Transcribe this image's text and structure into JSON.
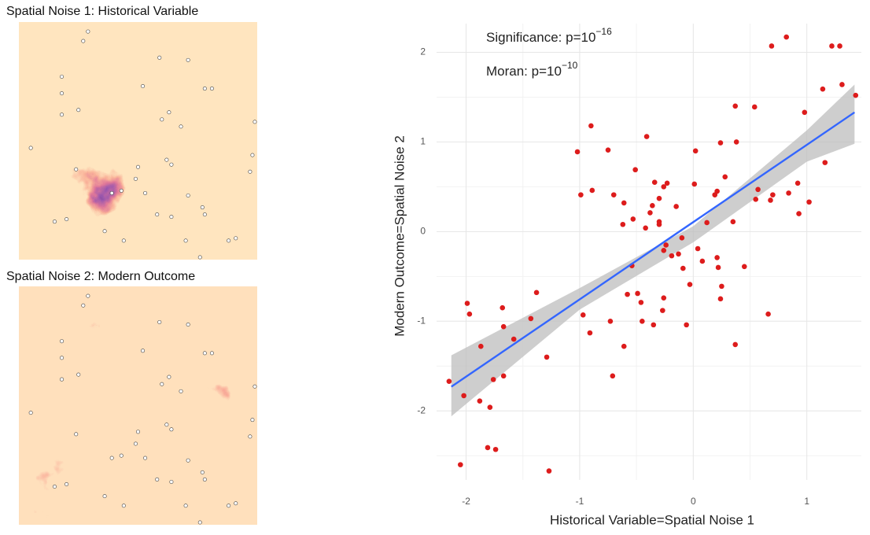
{
  "chart_data": [
    {
      "type": "map",
      "title": "Spatial Noise 1: Historical Variable",
      "x": [
        0.29,
        0.27,
        0.59,
        0.71,
        0.18,
        0.52,
        0.78,
        0.81,
        0.18,
        0.25,
        0.63,
        0.18,
        0.6,
        0.68,
        0.99,
        0.05,
        0.98,
        0.62,
        0.64,
        0.24,
        0.5,
        0.97,
        0.49,
        0.39,
        0.43,
        0.53,
        0.71,
        0.77,
        0.78,
        0.58,
        0.15,
        0.2,
        0.64,
        0.36,
        0.44,
        0.7,
        0.91,
        0.88,
        0.76
      ],
      "y": [
        0.04,
        0.08,
        0.15,
        0.16,
        0.23,
        0.27,
        0.28,
        0.28,
        0.3,
        0.37,
        0.38,
        0.39,
        0.41,
        0.44,
        0.42,
        0.53,
        0.56,
        0.58,
        0.6,
        0.62,
        0.61,
        0.63,
        0.66,
        0.72,
        0.71,
        0.72,
        0.73,
        0.78,
        0.81,
        0.81,
        0.84,
        0.83,
        0.82,
        0.88,
        0.92,
        0.92,
        0.91,
        0.92,
        0.99
      ]
    },
    {
      "type": "map",
      "title": "Spatial Noise 2: Modern Outcome",
      "x": [
        0.29,
        0.27,
        0.59,
        0.71,
        0.18,
        0.52,
        0.78,
        0.81,
        0.18,
        0.25,
        0.63,
        0.18,
        0.6,
        0.68,
        0.99,
        0.05,
        0.98,
        0.62,
        0.64,
        0.24,
        0.5,
        0.97,
        0.49,
        0.39,
        0.43,
        0.53,
        0.71,
        0.77,
        0.78,
        0.58,
        0.15,
        0.2,
        0.64,
        0.36,
        0.44,
        0.7,
        0.91,
        0.88,
        0.76
      ],
      "y": [
        0.04,
        0.08,
        0.15,
        0.16,
        0.23,
        0.27,
        0.28,
        0.28,
        0.3,
        0.37,
        0.38,
        0.39,
        0.41,
        0.44,
        0.42,
        0.53,
        0.56,
        0.58,
        0.6,
        0.62,
        0.61,
        0.63,
        0.66,
        0.72,
        0.71,
        0.72,
        0.73,
        0.78,
        0.81,
        0.81,
        0.84,
        0.83,
        0.82,
        0.88,
        0.92,
        0.92,
        0.91,
        0.92,
        0.99
      ]
    },
    {
      "type": "scatter",
      "x_label": "Historical Variable=Spatial Noise 1",
      "y_label": "Modern Outcome=Spatial Noise 2",
      "annotations": [
        {
          "text": "Significance: p=10",
          "sup": "−16"
        },
        {
          "text": "Moran: p=10",
          "sup": "−10"
        }
      ],
      "color": "#dd1c1c",
      "x": [
        0.82,
        0.69,
        1.22,
        1.29,
        1.31,
        1.14,
        1.43,
        0.37,
        0.54,
        0.98,
        -0.9,
        -0.41,
        0.24,
        0.38,
        -1.02,
        -0.75,
        0.02,
        1.16,
        -0.51,
        0.28,
        -0.34,
        -0.23,
        -0.26,
        0.01,
        0.92,
        -0.89,
        -0.99,
        -0.7,
        0.21,
        0.19,
        0.57,
        0.7,
        0.84,
        -0.3,
        -0.61,
        -0.36,
        -0.15,
        0.55,
        0.68,
        1.02,
        0.93,
        -0.38,
        -0.53,
        -0.3,
        -0.3,
        -0.62,
        -0.42,
        0.12,
        0.35,
        -0.1,
        -0.24,
        0.04,
        -0.26,
        -0.19,
        -0.13,
        0.08,
        0.21,
        -0.54,
        -0.09,
        0.22,
        0.45,
        -0.03,
        0.25,
        -0.58,
        -0.49,
        -0.26,
        0.24,
        -0.46,
        -0.27,
        -0.97,
        0.66,
        -0.73,
        -0.45,
        -0.35,
        -0.06,
        -0.91,
        -1.67,
        -1.68,
        -1.38,
        -1.43,
        -1.58,
        -0.61,
        0.37,
        -1.87,
        -1.99,
        -1.97,
        -1.29,
        -0.71,
        -1.67,
        -1.76,
        -2.15,
        -2.02,
        -1.88,
        -1.79,
        -1.81,
        -1.74,
        -2.05,
        -1.27
      ],
      "y": [
        2.17,
        2.07,
        2.07,
        2.07,
        1.64,
        1.59,
        1.52,
        1.4,
        1.39,
        1.33,
        1.18,
        1.06,
        0.99,
        1.0,
        0.89,
        0.91,
        0.9,
        0.77,
        0.69,
        0.61,
        0.55,
        0.54,
        0.5,
        0.53,
        0.54,
        0.46,
        0.41,
        0.41,
        0.45,
        0.41,
        0.47,
        0.41,
        0.43,
        0.37,
        0.32,
        0.29,
        0.28,
        0.36,
        0.35,
        0.33,
        0.2,
        0.21,
        0.14,
        0.11,
        0.08,
        0.08,
        0.04,
        0.1,
        0.11,
        -0.07,
        -0.15,
        -0.19,
        -0.21,
        -0.27,
        -0.25,
        -0.33,
        -0.29,
        -0.38,
        -0.41,
        -0.4,
        -0.39,
        -0.59,
        -0.61,
        -0.7,
        -0.69,
        -0.74,
        -0.75,
        -0.79,
        -0.88,
        -0.93,
        -0.92,
        -1.0,
        -1.0,
        -1.04,
        -1.04,
        -1.13,
        -1.06,
        -0.85,
        -0.68,
        -0.97,
        -1.2,
        -1.28,
        -1.26,
        -1.28,
        -0.8,
        -0.92,
        -1.4,
        -1.61,
        -1.61,
        -1.65,
        -1.67,
        -1.83,
        -1.89,
        -1.96,
        -2.41,
        -2.43,
        -2.6,
        -2.67
      ],
      "fit": {
        "x": [
          -2.13,
          1.42
        ],
        "y": [
          -1.73,
          1.33
        ],
        "color": "#3366ff"
      },
      "band": {
        "x": [
          -2.13,
          -1,
          0,
          1,
          1.42
        ],
        "lower": [
          -2.06,
          -0.87,
          -0.12,
          0.78,
          0.98
        ],
        "upper": [
          -1.38,
          -0.63,
          0.06,
          1.13,
          1.64
        ],
        "color": "#bdbdbd"
      },
      "xlim": [
        -2.26,
        1.48
      ],
      "ylim": [
        -2.77,
        2.32
      ],
      "xticks": [
        -2,
        -1,
        0,
        1
      ],
      "yticks": [
        -2,
        -1,
        0,
        1,
        2
      ],
      "grid": true
    }
  ]
}
